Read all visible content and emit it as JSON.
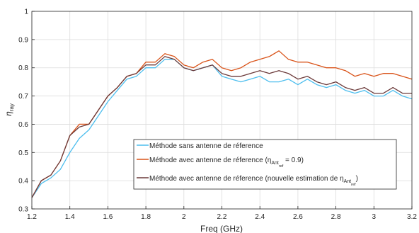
{
  "chart_data": {
    "type": "line",
    "xlabel": "Freq (GHz)",
    "ylabel": {
      "main": "η",
      "sub": "ray"
    },
    "xlim": [
      1.2,
      3.2
    ],
    "ylim": [
      0.3,
      1.0
    ],
    "xticks": [
      "1.2",
      "1.4",
      "1.6",
      "1.8",
      "2",
      "2.2",
      "2.4",
      "2.6",
      "2.8",
      "3",
      "3.2"
    ],
    "yticks": [
      "0.3",
      "0.4",
      "0.5",
      "0.6",
      "0.7",
      "0.8",
      "0.9",
      "1"
    ],
    "grid": true,
    "legend_position": "lower-right",
    "legend": [
      {
        "text": "Méthode sans antenne de réference",
        "color": "#4DBEEE"
      },
      {
        "text_prefix": "Méthode avec antenne de réference (η",
        "sub": "Ant",
        "subsub": "ref",
        "text_suffix": " = 0.9)",
        "color": "#D95319"
      },
      {
        "text_prefix": "Méthode avec antenne de réference (nouvelle estimation de η",
        "sub": "Ant",
        "subsub": "ref",
        "text_suffix": ")",
        "color": "#6B3A3A"
      }
    ],
    "series": [
      {
        "color": "#4DBEEE",
        "x": [
          1.2,
          1.25,
          1.3,
          1.35,
          1.4,
          1.45,
          1.5,
          1.55,
          1.6,
          1.65,
          1.7,
          1.75,
          1.8,
          1.85,
          1.9,
          1.95,
          2.0,
          2.05,
          2.1,
          2.15,
          2.2,
          2.25,
          2.3,
          2.35,
          2.4,
          2.45,
          2.5,
          2.55,
          2.6,
          2.65,
          2.7,
          2.75,
          2.8,
          2.85,
          2.9,
          2.95,
          3.0,
          3.05,
          3.1,
          3.15,
          3.2
        ],
        "y": [
          0.34,
          0.39,
          0.41,
          0.44,
          0.5,
          0.55,
          0.58,
          0.63,
          0.68,
          0.72,
          0.76,
          0.77,
          0.8,
          0.8,
          0.83,
          0.83,
          0.8,
          0.79,
          0.8,
          0.81,
          0.77,
          0.76,
          0.75,
          0.76,
          0.77,
          0.75,
          0.75,
          0.76,
          0.74,
          0.76,
          0.74,
          0.73,
          0.74,
          0.72,
          0.71,
          0.72,
          0.7,
          0.7,
          0.72,
          0.7,
          0.69
        ]
      },
      {
        "color": "#D95319",
        "x": [
          1.2,
          1.25,
          1.3,
          1.35,
          1.4,
          1.45,
          1.5,
          1.55,
          1.6,
          1.65,
          1.7,
          1.75,
          1.8,
          1.85,
          1.9,
          1.95,
          2.0,
          2.05,
          2.1,
          2.15,
          2.2,
          2.25,
          2.3,
          2.35,
          2.4,
          2.45,
          2.5,
          2.55,
          2.6,
          2.65,
          2.7,
          2.75,
          2.8,
          2.85,
          2.9,
          2.95,
          3.0,
          3.05,
          3.1,
          3.15,
          3.2
        ],
        "y": [
          0.34,
          0.4,
          0.42,
          0.47,
          0.56,
          0.6,
          0.6,
          0.65,
          0.7,
          0.73,
          0.77,
          0.78,
          0.82,
          0.82,
          0.85,
          0.84,
          0.81,
          0.8,
          0.82,
          0.83,
          0.8,
          0.79,
          0.8,
          0.82,
          0.83,
          0.84,
          0.86,
          0.83,
          0.82,
          0.82,
          0.81,
          0.8,
          0.8,
          0.79,
          0.77,
          0.78,
          0.77,
          0.78,
          0.78,
          0.77,
          0.76
        ]
      },
      {
        "color": "#6B3A3A",
        "x": [
          1.2,
          1.25,
          1.3,
          1.35,
          1.4,
          1.45,
          1.5,
          1.55,
          1.6,
          1.65,
          1.7,
          1.75,
          1.8,
          1.85,
          1.9,
          1.95,
          2.0,
          2.05,
          2.1,
          2.15,
          2.2,
          2.25,
          2.3,
          2.35,
          2.4,
          2.45,
          2.5,
          2.55,
          2.6,
          2.65,
          2.7,
          2.75,
          2.8,
          2.85,
          2.9,
          2.95,
          3.0,
          3.05,
          3.1,
          3.15,
          3.2
        ],
        "y": [
          0.34,
          0.4,
          0.42,
          0.47,
          0.56,
          0.59,
          0.6,
          0.65,
          0.7,
          0.73,
          0.77,
          0.78,
          0.81,
          0.81,
          0.84,
          0.83,
          0.8,
          0.79,
          0.8,
          0.81,
          0.78,
          0.77,
          0.77,
          0.78,
          0.79,
          0.78,
          0.79,
          0.78,
          0.76,
          0.77,
          0.75,
          0.74,
          0.75,
          0.73,
          0.72,
          0.73,
          0.71,
          0.71,
          0.73,
          0.71,
          0.71
        ]
      }
    ]
  }
}
